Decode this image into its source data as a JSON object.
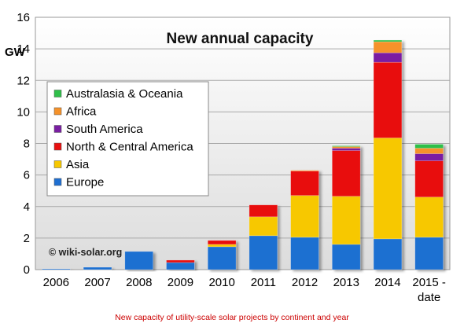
{
  "chart_data": {
    "type": "bar",
    "stacked": true,
    "title": "New annual capacity",
    "ylabel": "GW",
    "ylim": [
      0,
      16
    ],
    "yticks": [
      0,
      2,
      4,
      6,
      8,
      10,
      12,
      14,
      16
    ],
    "grid": true,
    "legend_position": "left",
    "categories": [
      "2006",
      "2007",
      "2008",
      "2009",
      "2010",
      "2011",
      "2012",
      "2013",
      "2014",
      "2015 -\ndate"
    ],
    "category_lines": [
      [
        "2006"
      ],
      [
        "2007"
      ],
      [
        "2008"
      ],
      [
        "2009"
      ],
      [
        "2010"
      ],
      [
        "2011"
      ],
      [
        "2012"
      ],
      [
        "2013"
      ],
      [
        "2014"
      ],
      [
        "2015 -",
        "date"
      ]
    ],
    "series": [
      {
        "name": "Europe",
        "color": "#1f6fd1",
        "values": [
          0.05,
          0.15,
          1.15,
          0.45,
          1.45,
          2.15,
          2.05,
          1.6,
          1.95,
          2.05
        ]
      },
      {
        "name": "Asia",
        "color": "#f7c800",
        "values": [
          0,
          0,
          0,
          0,
          0.15,
          1.2,
          2.65,
          3.05,
          6.4,
          2.55
        ]
      },
      {
        "name": "North & Central America",
        "color": "#e81010",
        "values": [
          0,
          0,
          0,
          0.15,
          0.25,
          0.75,
          1.55,
          2.9,
          4.8,
          2.3
        ]
      },
      {
        "name": "South America",
        "color": "#7a1fa2",
        "values": [
          0,
          0,
          0,
          0,
          0,
          0,
          0,
          0.15,
          0.6,
          0.45
        ]
      },
      {
        "name": "Africa",
        "color": "#f5922a",
        "values": [
          0,
          0,
          0,
          0,
          0,
          0,
          0.05,
          0.1,
          0.7,
          0.35
        ]
      },
      {
        "name": "Australasia & Oceania",
        "color": "#2fbf4a",
        "values": [
          0,
          0,
          0,
          0,
          0,
          0,
          0,
          0.05,
          0.1,
          0.25
        ]
      }
    ],
    "annotation": "© wiki-solar.org",
    "caption": "New capacity of utility-scale solar projects by continent and year"
  }
}
